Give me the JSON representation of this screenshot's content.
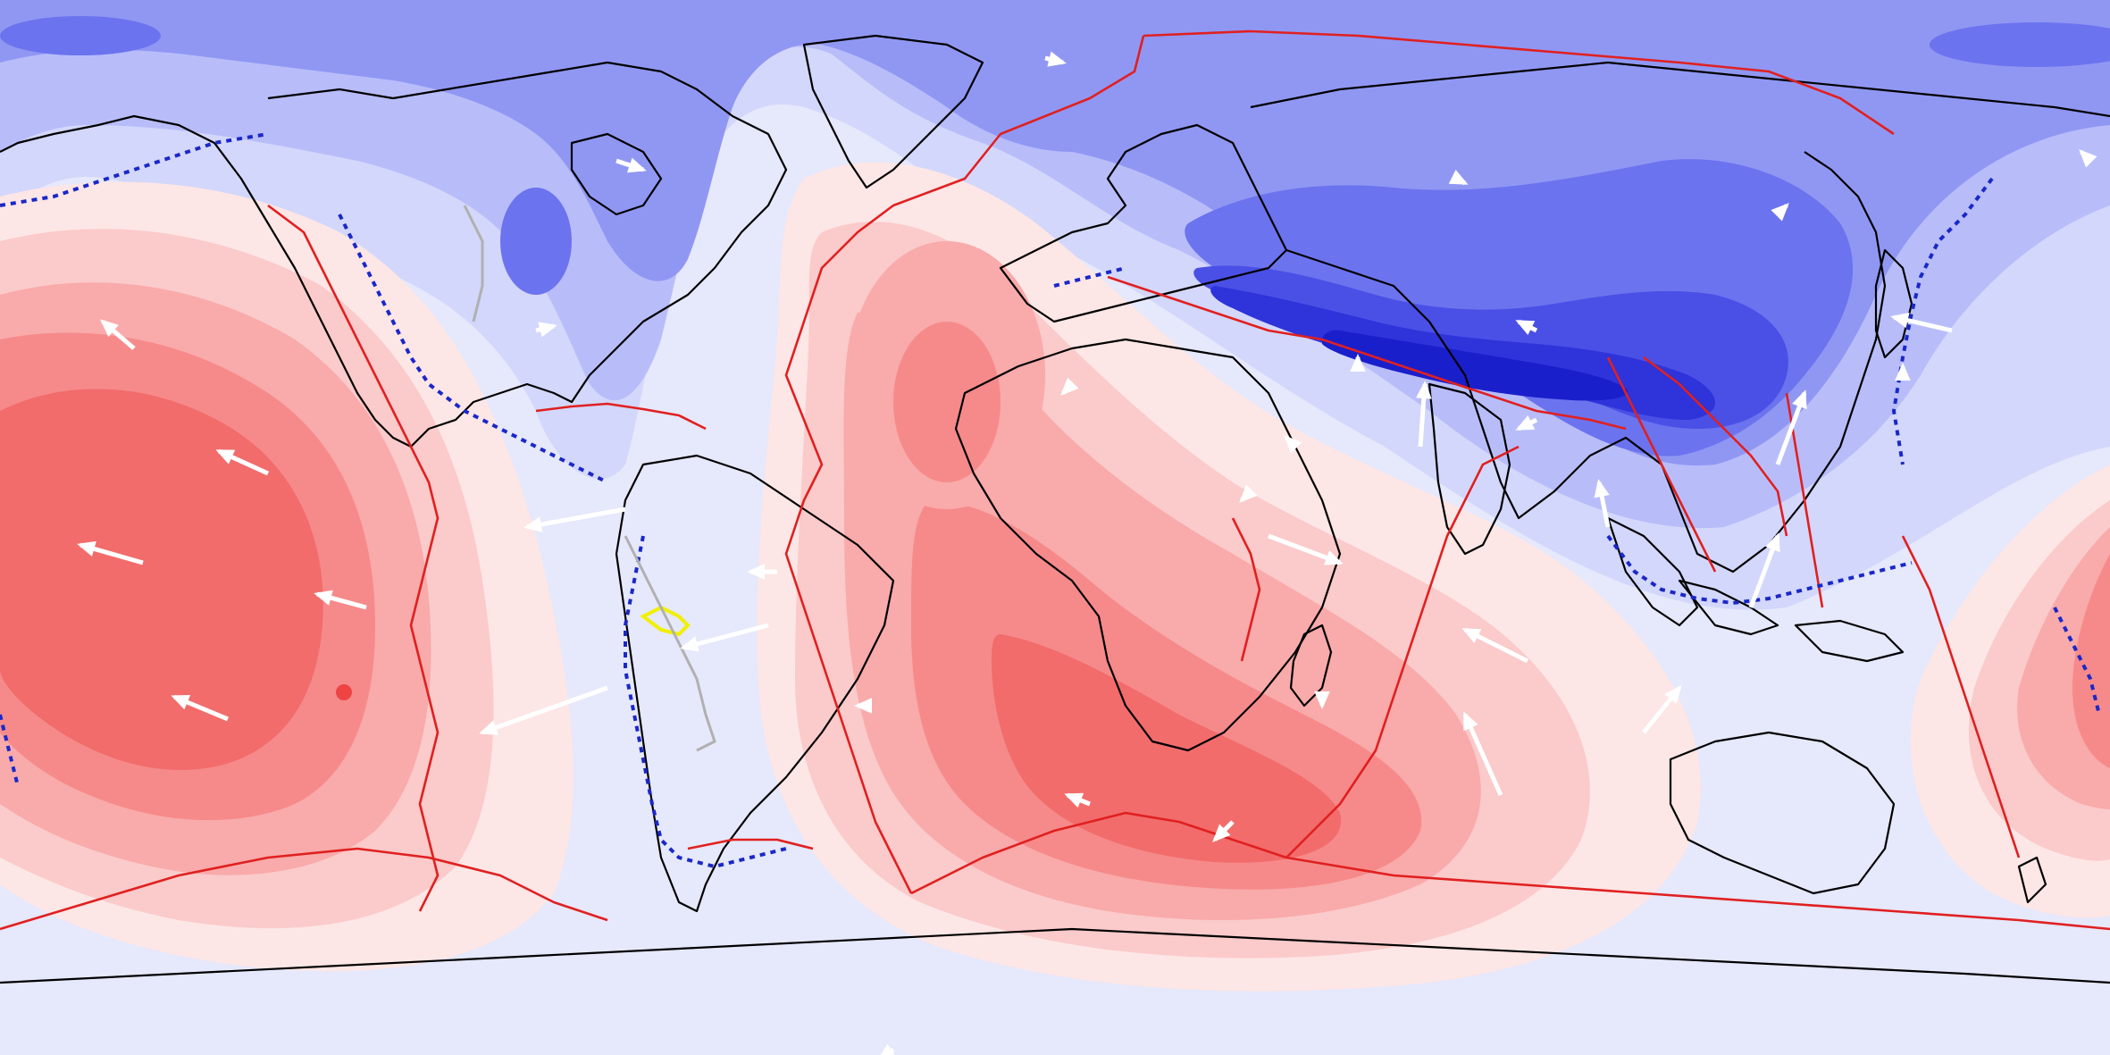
{
  "colors": {
    "ocean_base": "#e6e8fb",
    "blue_levels": [
      "#d3d7fb",
      "#b8bdfa",
      "#9097f3",
      "#6c73ee",
      "#4a50e6",
      "#2e33da",
      "#1a1fcc"
    ],
    "red_levels": [
      "#fde6e6",
      "#fbcaca",
      "#f9aaaa",
      "#f68a8a",
      "#f26c6c"
    ],
    "coastline": "#000000",
    "plate_boundary": "#e02020",
    "subduction_zone": "#1a28c8",
    "velocity_arrow": "#ffffff",
    "highlight_yellow": "#f0f000",
    "highlight_gray": "#b0b0b0"
  },
  "legend": [],
  "map": {
    "projection": "equirectangular",
    "layers": [
      "field-contours",
      "coastlines",
      "plate-boundaries",
      "subduction-zones",
      "velocity-arrows"
    ]
  }
}
